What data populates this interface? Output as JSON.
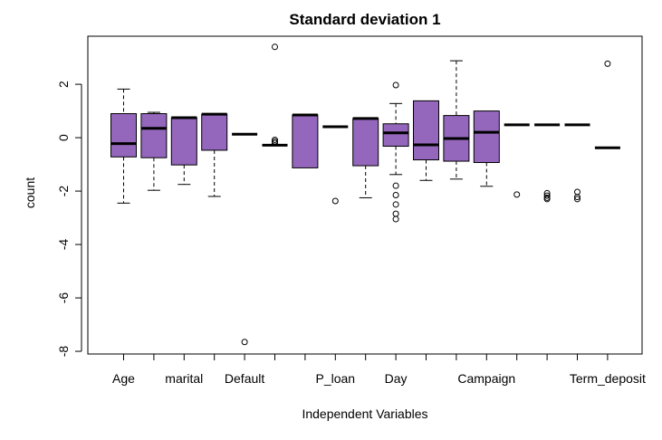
{
  "chart_data": {
    "type": "boxplot",
    "title": "Standard deviation 1",
    "xlabel": "Independent Variables",
    "ylabel": "count",
    "ylim": [
      -8.1,
      3.8
    ],
    "yticks": [
      -8,
      -6,
      -4,
      -2,
      0,
      2
    ],
    "grid": false,
    "legend": "none",
    "box_color": "#9467BD",
    "categories": [
      "Age",
      "",
      "marital",
      "",
      "Default",
      "",
      "",
      "P_loan",
      "",
      "Day",
      "",
      "",
      "Campaign",
      "",
      "",
      "",
      "Term_deposit"
    ],
    "boxes": [
      {
        "lw": -2.45,
        "q1": -0.72,
        "med": -0.22,
        "q3": 0.9,
        "uw": 1.82,
        "outliers": []
      },
      {
        "lw": -1.97,
        "q1": -0.75,
        "med": 0.35,
        "q3": 0.9,
        "uw": 0.95,
        "outliers": []
      },
      {
        "lw": -1.75,
        "q1": -1.02,
        "med": 0.75,
        "q3": 0.75,
        "uw": 0.75,
        "outliers": []
      },
      {
        "lw": -2.2,
        "q1": -0.47,
        "med": 0.88,
        "q3": 0.88,
        "uw": 0.88,
        "outliers": []
      },
      {
        "lw": 0.13,
        "q1": 0.13,
        "med": 0.13,
        "q3": 0.13,
        "uw": 0.13,
        "outliers": [
          -7.65
        ]
      },
      {
        "lw": -0.28,
        "q1": -0.28,
        "med": -0.28,
        "q3": -0.28,
        "uw": -0.28,
        "outliers": [
          3.4,
          -0.08,
          -0.14,
          -0.2
        ]
      },
      {
        "lw": -1.13,
        "q1": -1.13,
        "med": 0.85,
        "q3": 0.85,
        "uw": 0.85,
        "outliers": []
      },
      {
        "lw": 0.41,
        "q1": 0.41,
        "med": 0.41,
        "q3": 0.41,
        "uw": 0.41,
        "outliers": [
          -2.37
        ]
      },
      {
        "lw": -2.25,
        "q1": -1.05,
        "med": 0.72,
        "q3": 0.72,
        "uw": 0.72,
        "outliers": []
      },
      {
        "lw": -1.38,
        "q1": -0.32,
        "med": 0.18,
        "q3": 0.52,
        "uw": 1.28,
        "outliers": [
          1.97,
          -1.8,
          -2.15,
          -2.5,
          -2.85,
          -3.05
        ]
      },
      {
        "lw": -1.6,
        "q1": -0.83,
        "med": -0.27,
        "q3": 1.38,
        "uw": 1.38,
        "outliers": []
      },
      {
        "lw": -1.55,
        "q1": -0.88,
        "med": -0.03,
        "q3": 0.83,
        "uw": 2.88,
        "outliers": []
      },
      {
        "lw": -1.82,
        "q1": -0.93,
        "med": 0.2,
        "q3": 1.0,
        "uw": 1.0,
        "outliers": []
      },
      {
        "lw": 0.48,
        "q1": 0.48,
        "med": 0.48,
        "q3": 0.48,
        "uw": 0.48,
        "outliers": [
          -2.13
        ]
      },
      {
        "lw": 0.48,
        "q1": 0.48,
        "med": 0.48,
        "q3": 0.48,
        "uw": 0.48,
        "outliers": [
          -2.08,
          -2.17,
          -2.25,
          -2.3
        ]
      },
      {
        "lw": 0.48,
        "q1": 0.48,
        "med": 0.48,
        "q3": 0.48,
        "uw": 0.48,
        "outliers": [
          -2.03,
          -2.22,
          -2.3
        ]
      },
      {
        "lw": -0.38,
        "q1": -0.38,
        "med": -0.38,
        "q3": -0.38,
        "uw": -0.38,
        "outliers": [
          2.77
        ]
      }
    ]
  }
}
